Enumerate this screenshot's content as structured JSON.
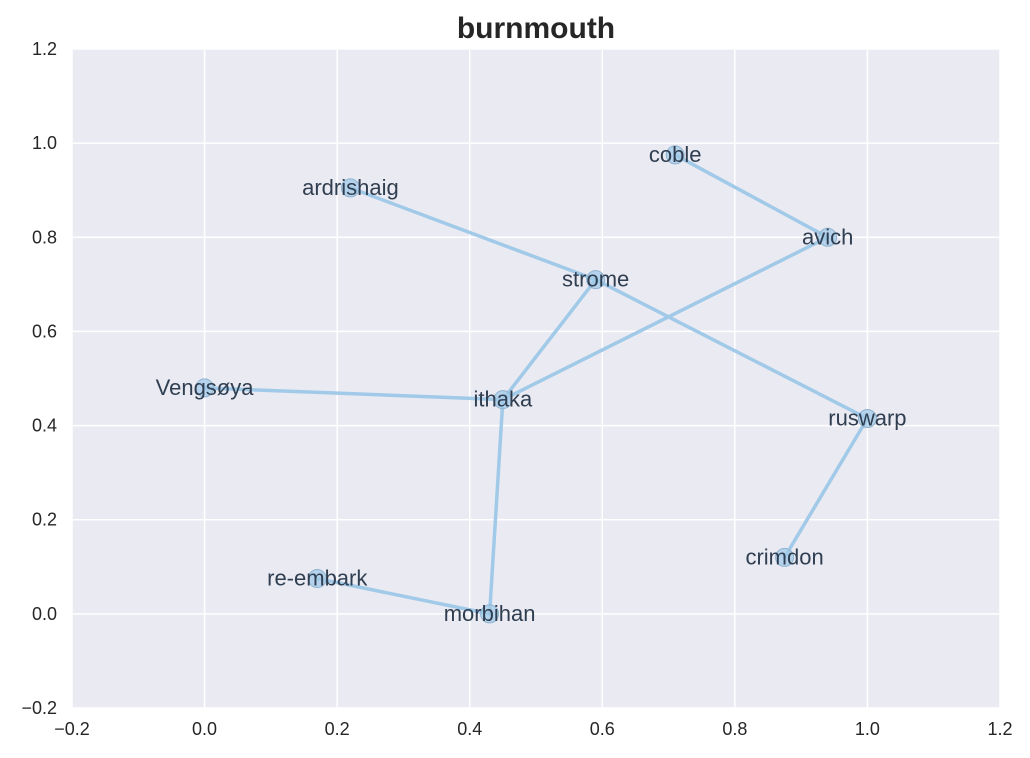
{
  "chart_data": {
    "type": "scatter",
    "title": "burnmouth",
    "xlabel": "",
    "ylabel": "",
    "xlim": [
      -0.2,
      1.2
    ],
    "ylim": [
      -0.2,
      1.2
    ],
    "x_ticks": [
      "−0.2",
      "0.0",
      "0.2",
      "0.4",
      "0.6",
      "0.8",
      "1.0",
      "1.2"
    ],
    "y_ticks": [
      "−0.2",
      "0.0",
      "0.2",
      "0.4",
      "0.6",
      "0.8",
      "1.0",
      "1.2"
    ],
    "grid": true,
    "colors": {
      "plot_background": "#eaeaf2",
      "grid": "#ffffff",
      "edge": "#a1c9e8",
      "marker": "#a1c9e8",
      "marker_edge": "#8fb3d0",
      "label": "#2f3e50"
    },
    "nodes": [
      {
        "label": "coble",
        "x": 0.71,
        "y": 0.975
      },
      {
        "label": "ardrishaig",
        "x": 0.22,
        "y": 0.905
      },
      {
        "label": "avich",
        "x": 0.94,
        "y": 0.8
      },
      {
        "label": "strome",
        "x": 0.59,
        "y": 0.71
      },
      {
        "label": "Vengsøya",
        "x": 0.0,
        "y": 0.48
      },
      {
        "label": "ithaka",
        "x": 0.45,
        "y": 0.455
      },
      {
        "label": "ruswarp",
        "x": 1.0,
        "y": 0.415
      },
      {
        "label": "crimdon",
        "x": 0.875,
        "y": 0.12
      },
      {
        "label": "re-embark",
        "x": 0.17,
        "y": 0.075
      },
      {
        "label": "morbihan",
        "x": 0.43,
        "y": 0.0
      }
    ],
    "edges": [
      [
        "coble",
        "avich"
      ],
      [
        "avich",
        "ithaka"
      ],
      [
        "ardrishaig",
        "strome"
      ],
      [
        "strome",
        "ruswarp"
      ],
      [
        "strome",
        "ithaka"
      ],
      [
        "ruswarp",
        "crimdon"
      ],
      [
        "Vengsøya",
        "ithaka"
      ],
      [
        "ithaka",
        "morbihan"
      ],
      [
        "morbihan",
        "re-embark"
      ]
    ]
  }
}
